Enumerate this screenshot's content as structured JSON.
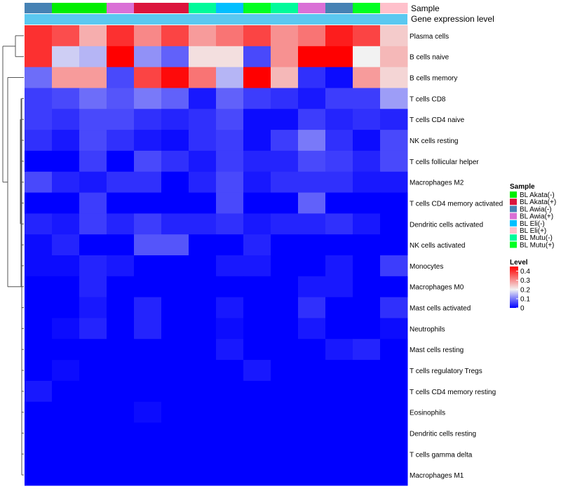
{
  "chart_data": {
    "type": "heatmap",
    "title": "",
    "annotation_tracks": {
      "sample_label": "Sample",
      "gene_label": "Gene expression level"
    },
    "columns": [
      "BL Awia(-)",
      "BL Akata(-)",
      "BL Akata(-)",
      "BL Awia(+)",
      "BL Akata(+)",
      "BL Akata(+)",
      "BL Mutu(-)",
      "BL Eli(-)",
      "BL Mutu(+)",
      "BL Mutu(-)",
      "BL Awia(+)",
      "BL Awia(-)",
      "BL Mutu(+)",
      "BL Eli(+)"
    ],
    "rows": [
      "Plasma cells",
      "B cells naive",
      "B cells memory",
      "T cells CD8",
      "T cells CD4 naive",
      "NK cells resting",
      "T cells follicular helper",
      "Macrophages M2",
      "T cells CD4 memory activated",
      "Dendritic cells activated",
      "NK cells activated",
      "Monocytes",
      "Macrophages M0",
      "Mast cells activated",
      "Neutrophils",
      "Mast cells resting",
      "T cells regulatory  Tregs",
      "T cells CD4 memory resting",
      "Eosinophils",
      "Dendritic cells resting",
      "T cells gamma delta",
      "Macrophages M1"
    ],
    "values": [
      [
        0.4,
        0.37,
        0.27,
        0.4,
        0.31,
        0.38,
        0.29,
        0.33,
        0.38,
        0.3,
        0.33,
        0.42,
        0.38,
        0.24
      ],
      [
        0.4,
        0.17,
        0.15,
        0.45,
        0.12,
        0.08,
        0.22,
        0.22,
        0.06,
        0.3,
        0.45,
        0.45,
        0.2,
        0.26
      ],
      [
        0.09,
        0.29,
        0.29,
        0.06,
        0.38,
        0.44,
        0.33,
        0.15,
        0.45,
        0.26,
        0.04,
        0.01,
        0.29,
        0.23
      ],
      [
        0.05,
        0.06,
        0.09,
        0.07,
        0.1,
        0.08,
        0.02,
        0.08,
        0.05,
        0.04,
        0.02,
        0.05,
        0.05,
        0.13
      ],
      [
        0.05,
        0.04,
        0.06,
        0.06,
        0.04,
        0.03,
        0.04,
        0.06,
        0.01,
        0.01,
        0.05,
        0.03,
        0.04,
        0.03
      ],
      [
        0.04,
        0.02,
        0.06,
        0.04,
        0.02,
        0.01,
        0.04,
        0.05,
        0.01,
        0.05,
        0.1,
        0.04,
        0.01,
        0.06
      ],
      [
        0.0,
        0.0,
        0.05,
        0.0,
        0.06,
        0.04,
        0.02,
        0.05,
        0.03,
        0.03,
        0.06,
        0.05,
        0.03,
        0.06
      ],
      [
        0.06,
        0.03,
        0.02,
        0.04,
        0.04,
        0.0,
        0.03,
        0.06,
        0.02,
        0.04,
        0.04,
        0.04,
        0.02,
        0.02
      ],
      [
        0.0,
        0.0,
        0.05,
        0.0,
        0.0,
        0.0,
        0.0,
        0.06,
        0.0,
        0.0,
        0.08,
        0.0,
        0.0,
        0.0
      ],
      [
        0.03,
        0.02,
        0.05,
        0.03,
        0.05,
        0.03,
        0.03,
        0.04,
        0.02,
        0.03,
        0.03,
        0.04,
        0.02,
        0.0
      ],
      [
        0.01,
        0.03,
        0.0,
        0.0,
        0.07,
        0.07,
        0.0,
        0.0,
        0.03,
        0.0,
        0.0,
        0.0,
        0.0,
        0.0
      ],
      [
        0.01,
        0.01,
        0.03,
        0.02,
        0.0,
        0.0,
        0.0,
        0.02,
        0.02,
        0.0,
        0.0,
        0.02,
        0.0,
        0.05
      ],
      [
        0.0,
        0.0,
        0.03,
        0.0,
        0.0,
        0.0,
        0.0,
        0.0,
        0.0,
        0.0,
        0.02,
        0.02,
        0.0,
        0.0
      ],
      [
        0.0,
        0.0,
        0.02,
        0.0,
        0.03,
        0.0,
        0.0,
        0.02,
        0.0,
        0.0,
        0.04,
        0.0,
        0.0,
        0.04
      ],
      [
        0.0,
        0.01,
        0.03,
        0.0,
        0.03,
        0.0,
        0.0,
        0.01,
        0.0,
        0.0,
        0.02,
        0.0,
        0.0,
        0.01
      ],
      [
        0.0,
        0.0,
        0.0,
        0.0,
        0.0,
        0.0,
        0.0,
        0.02,
        0.0,
        0.0,
        0.0,
        0.02,
        0.03,
        0.0
      ],
      [
        0.0,
        0.01,
        0.0,
        0.0,
        0.0,
        0.0,
        0.0,
        0.0,
        0.02,
        0.0,
        0.0,
        0.0,
        0.0,
        0.0
      ],
      [
        0.02,
        0.0,
        0.0,
        0.0,
        0.0,
        0.0,
        0.0,
        0.0,
        0.0,
        0.0,
        0.0,
        0.0,
        0.0,
        0.0
      ],
      [
        0.0,
        0.0,
        0.0,
        0.0,
        0.01,
        0.0,
        0.0,
        0.0,
        0.0,
        0.0,
        0.0,
        0.0,
        0.0,
        0.0
      ],
      [
        0.0,
        0.0,
        0.0,
        0.0,
        0.0,
        0.0,
        0.0,
        0.0,
        0.0,
        0.0,
        0.0,
        0.0,
        0.0,
        0.0
      ],
      [
        0.0,
        0.0,
        0.0,
        0.0,
        0.0,
        0.0,
        0.0,
        0.0,
        0.0,
        0.0,
        0.0,
        0.0,
        0.0,
        0.0
      ],
      [
        0.0,
        0.0,
        0.0,
        0.0,
        0.0,
        0.0,
        0.0,
        0.0,
        0.0,
        0.0,
        0.0,
        0.0,
        0.0,
        0.0
      ]
    ],
    "color_scale": {
      "min": 0,
      "mid": 0.2,
      "max": 0.45,
      "low_color": "#0000ff",
      "mid_color": "#f2f2f2",
      "high_color": "#ff0000"
    },
    "legend": {
      "sample_title": "Sample",
      "sample_entries": [
        {
          "label": "BL Akata(-)",
          "color": "#00ee00"
        },
        {
          "label": "BL Akata(+)",
          "color": "#dc143c"
        },
        {
          "label": "BL Awia(-)",
          "color": "#4682b4"
        },
        {
          "label": "BL Awia(+)",
          "color": "#da70d6"
        },
        {
          "label": "BL Eli(-)",
          "color": "#00bfff"
        },
        {
          "label": "BL Eli(+)",
          "color": "#ffc0cb"
        },
        {
          "label": "BL Mutu(-)",
          "color": "#00fa9a"
        },
        {
          "label": "BL Mutu(+)",
          "color": "#00ff22"
        }
      ],
      "level_title": "Level",
      "level_ticks": [
        "0.4",
        "0.3",
        "0.2",
        "0.1",
        "0"
      ],
      "level_tick_values": [
        0.4,
        0.3,
        0.2,
        0.1,
        0.0
      ],
      "placement": "right"
    },
    "gene_track_color": "#5bc8f0",
    "dendrogram": "rows-left"
  }
}
